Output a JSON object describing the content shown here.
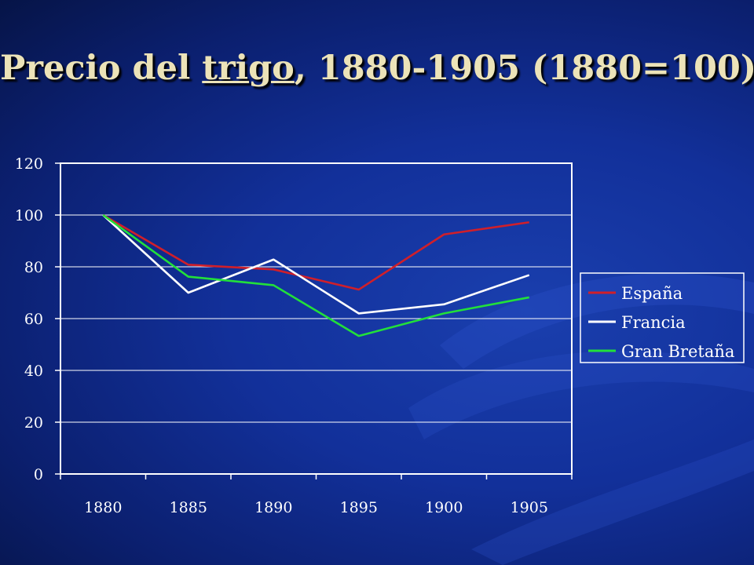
{
  "slide": {
    "title_pre": "Precio del ",
    "title_link": "trigo",
    "title_post": ", 1880-1905 (1880=100)"
  },
  "colors": {
    "background": "#12309a",
    "title": "#ece3b8",
    "axis": "#ffffff"
  },
  "chart_data": {
    "type": "line",
    "categories": [
      "1880",
      "1885",
      "1890",
      "1895",
      "1900",
      "1905"
    ],
    "ylim": [
      0,
      120
    ],
    "yticks": [
      0,
      20,
      40,
      60,
      80,
      100,
      120
    ],
    "grid": true,
    "legend_position": "right",
    "series": [
      {
        "name": "España",
        "color": "#d01f2a",
        "values": [
          100,
          80.8,
          79,
          71.2,
          92.5,
          97.2
        ]
      },
      {
        "name": "Francia",
        "color": "#ffffff",
        "values": [
          100,
          70,
          82.8,
          62,
          65.5,
          76.8
        ]
      },
      {
        "name": "Gran Bretaña",
        "color": "#22e03a",
        "values": [
          100,
          76.2,
          72.9,
          53.3,
          62,
          68.2
        ]
      }
    ]
  }
}
